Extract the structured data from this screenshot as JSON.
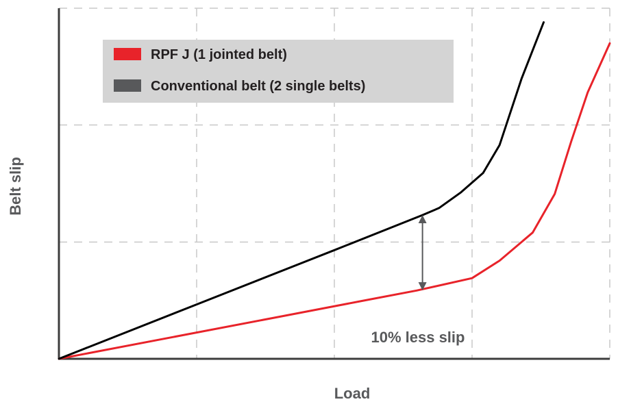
{
  "chart_data": {
    "type": "line",
    "title": "",
    "xlabel": "Load",
    "ylabel": "Belt slip",
    "xlim": [
      0,
      100
    ],
    "ylim": [
      0,
      100
    ],
    "grid": true,
    "legend_position": "top-left",
    "series": [
      {
        "name": "RPF J (1 jointed belt)",
        "color": "#e8232a",
        "x": [
          0,
          20,
          40,
          55,
          65,
          75,
          80,
          86,
          90,
          93,
          96,
          100
        ],
        "y": [
          0,
          6,
          12,
          16.5,
          19.5,
          23,
          28,
          36,
          47,
          62,
          76,
          90
        ]
      },
      {
        "name": "Conventional belt (2 single belts)",
        "color": "#000000",
        "x": [
          0,
          25,
          50,
          66,
          69,
          73,
          77,
          80,
          84,
          88
        ],
        "y": [
          0,
          15.5,
          31,
          41,
          43,
          47.5,
          53,
          61,
          80,
          96
        ]
      }
    ],
    "annotation": {
      "text": "10% less slip",
      "x": 66,
      "y_top": 41,
      "y_bottom": 19.5
    }
  }
}
